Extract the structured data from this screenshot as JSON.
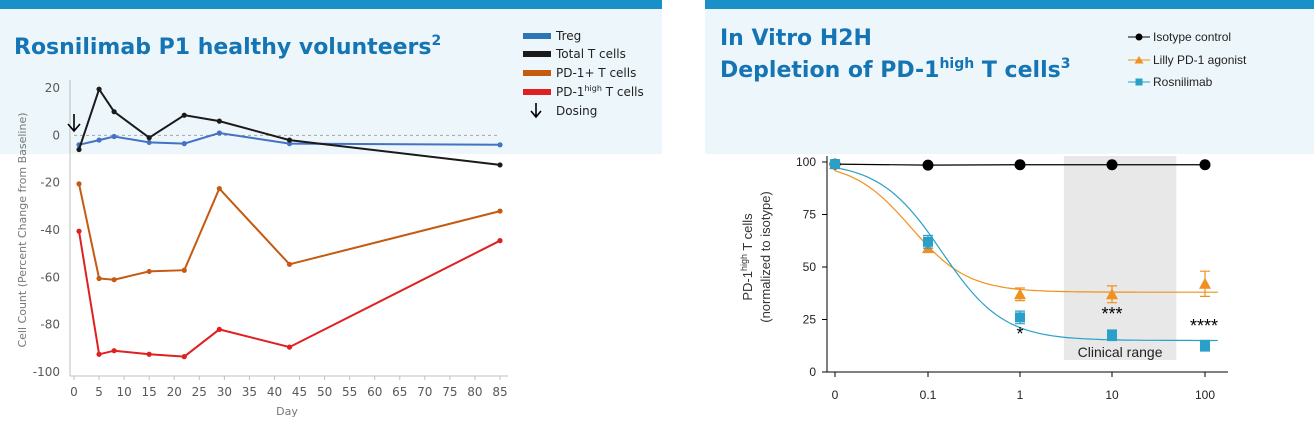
{
  "left_panel": {
    "title": "Rosnilimab P1 healthy volunteers",
    "title_sup": "2"
  },
  "right_panel": {
    "title_line1": "In Vitro H2H",
    "title_line2_pre": "Depletion of PD-1",
    "title_line2_sup": "high",
    "title_line2_post": " T cells",
    "title_sup": "3"
  },
  "colors": {
    "header_bar": "#1a90c8",
    "title": "#1575b4",
    "treg": "#4472c4",
    "treg_legend": "#2e75b6",
    "total": "#1a1a1a",
    "pd1": "#c55a11",
    "pd1high": "#e02020",
    "isotype": "#000000",
    "lilly": "#f0901e",
    "rosnilimab": "#2aa0c8",
    "clinical_range": "#e8e8e8"
  },
  "chart_data": [
    {
      "type": "line",
      "title": "Rosnilimab P1 healthy volunteers",
      "xlabel": "Day",
      "ylabel": "Cell Count (Percent Change from Baseline)",
      "xlim": [
        0,
        85
      ],
      "ylim": [
        -100,
        20
      ],
      "x_ticks": [
        "0",
        "5",
        "10",
        "15",
        "20",
        "25",
        "30",
        "35",
        "40",
        "45",
        "50",
        "55",
        "60",
        "65",
        "70",
        "75",
        "80",
        "85"
      ],
      "y_ticks": [
        "20",
        "0",
        "-20",
        "-40",
        "-60",
        "-80",
        "-100"
      ],
      "reference_line": 0,
      "legend": [
        {
          "label": "Treg",
          "key": "treg_legend"
        },
        {
          "label": "Total T cells",
          "key": "total"
        },
        {
          "label": "PD-1+ T cells",
          "key": "pd1"
        },
        {
          "label_pre": "PD-1",
          "label_sup": "high",
          "label_post": " T cells",
          "key": "pd1high"
        },
        {
          "label": "Dosing",
          "marker": "arrow"
        }
      ],
      "dosing_day": 0,
      "series": [
        {
          "name": "Treg",
          "color_key": "treg",
          "x": [
            1,
            5,
            8,
            15,
            22,
            29,
            43,
            85
          ],
          "y": [
            -4,
            -2,
            -0.5,
            -3,
            -3.5,
            1,
            -3.5,
            -4
          ]
        },
        {
          "name": "Total T cells",
          "color_key": "total",
          "x": [
            1,
            5,
            8,
            15,
            22,
            29,
            43,
            85
          ],
          "y": [
            -6,
            19.5,
            10,
            -1,
            8.5,
            6,
            -2,
            -12.5
          ]
        },
        {
          "name": "PD-1+ T cells",
          "color_key": "pd1",
          "x": [
            1,
            5,
            8,
            15,
            22,
            29,
            43,
            85
          ],
          "y": [
            -20.5,
            -60.5,
            -61,
            -57.5,
            -57,
            -22.5,
            -54.5,
            -32
          ]
        },
        {
          "name": "PD-1high T cells",
          "color_key": "pd1high",
          "x": [
            1,
            5,
            8,
            15,
            22,
            29,
            43,
            85
          ],
          "y": [
            -40.5,
            -92.5,
            -91,
            -92.5,
            -93.5,
            -82,
            -89.5,
            -44.5
          ]
        }
      ]
    },
    {
      "type": "scatter",
      "title": "In Vitro H2H Depletion of PD-1high T cells",
      "xlabel": "",
      "ylabel_line1_pre": "PD-1",
      "ylabel_line1_sup": "high",
      "ylabel_line1_post": " T cells",
      "ylabel_line2": "(normalized to isotype)",
      "x_scale": "log",
      "x_ticks": [
        "0",
        "0.1",
        "1",
        "10",
        "100"
      ],
      "ylim": [
        0,
        100
      ],
      "y_ticks": [
        "100",
        "75",
        "50",
        "25",
        "0"
      ],
      "clinical_range_label": "Clinical range",
      "clinical_range_conc": [
        3,
        50
      ],
      "legend": [
        {
          "label": "Isotype control",
          "key": "isotype",
          "marker": "circle"
        },
        {
          "label": "Lilly PD-1 agonist",
          "key": "lilly",
          "marker": "triangle"
        },
        {
          "label": "Rosnilimab",
          "key": "rosnilimab",
          "marker": "square"
        }
      ],
      "series": [
        {
          "name": "Isotype control",
          "color_key": "isotype",
          "marker": "circle",
          "conc": [
            0,
            0.1,
            1,
            10,
            100
          ],
          "y": [
            99,
            98.5,
            98.7,
            98.7,
            98.7
          ],
          "err": [
            0,
            0,
            0,
            0,
            0
          ],
          "fit": {
            "bottom": 98.7,
            "top": 98.8,
            "ec50": 1,
            "hill": 1
          }
        },
        {
          "name": "Lilly PD-1 agonist",
          "color_key": "lilly",
          "marker": "triangle",
          "conc": [
            0,
            0.1,
            1,
            10,
            100
          ],
          "y": [
            99,
            59,
            37,
            37,
            42
          ],
          "err": [
            0,
            2,
            3,
            4,
            6
          ],
          "fit": {
            "bottom": 38,
            "top": 100,
            "ec50": 0.065,
            "hill": 1.4
          }
        },
        {
          "name": "Rosnilimab",
          "color_key": "rosnilimab",
          "marker": "square",
          "conc": [
            0,
            0.1,
            1,
            10,
            100
          ],
          "y": [
            99,
            62,
            26,
            17.5,
            12.5
          ],
          "err": [
            0,
            3,
            3,
            2.5,
            2.5
          ],
          "fit": {
            "bottom": 15,
            "top": 100,
            "ec50": 0.14,
            "hill": 1.3
          }
        }
      ],
      "significance": [
        {
          "conc": 1,
          "label": "*"
        },
        {
          "conc": 10,
          "label": "***"
        },
        {
          "conc": 100,
          "label": "****"
        }
      ]
    }
  ]
}
